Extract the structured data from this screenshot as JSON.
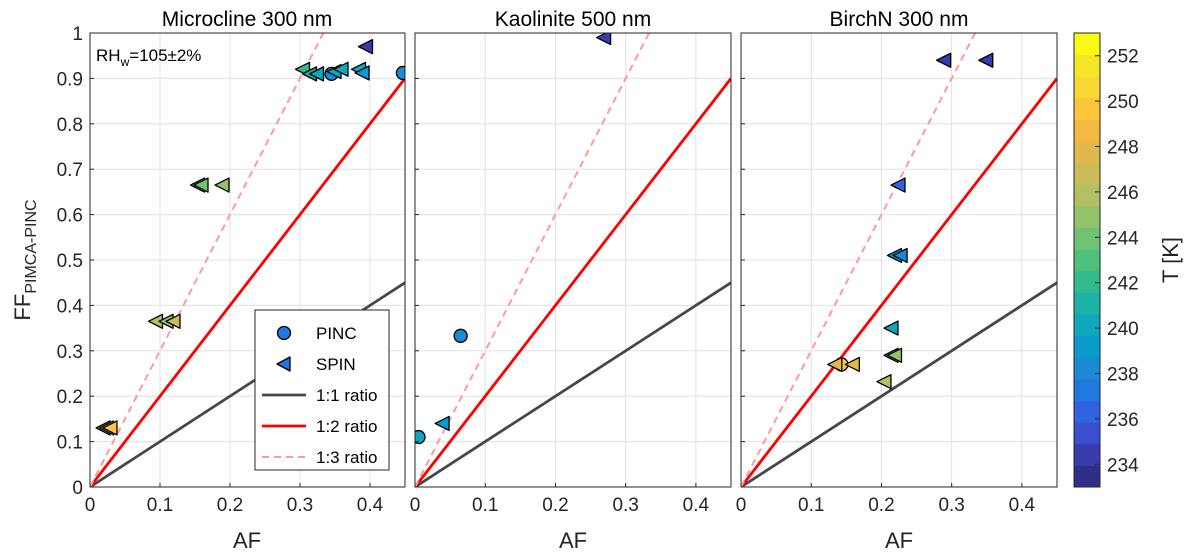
{
  "figure": {
    "ylabel_main": "FF",
    "ylabel_sub": "PIMCA-PINC",
    "xlabel": "AF",
    "annotation_main": "RH",
    "annotation_sub": "w",
    "annotation_rest": "=105±2%"
  },
  "legend": {
    "items": [
      {
        "label": "PINC",
        "kind": "circle"
      },
      {
        "label": "SPIN",
        "kind": "triangle"
      },
      {
        "label": "1:1 ratio",
        "kind": "line11"
      },
      {
        "label": "1:2 ratio",
        "kind": "line12"
      },
      {
        "label": "1:3 ratio",
        "kind": "line13"
      }
    ]
  },
  "colorbar": {
    "label": "T [K]",
    "range": [
      233,
      253
    ],
    "ticks": [
      234,
      236,
      238,
      240,
      242,
      244,
      246,
      248,
      250,
      252
    ],
    "colors": [
      "#2f2d87",
      "#383caa",
      "#3a4fd0",
      "#3163e0",
      "#2178dc",
      "#1a8bd2",
      "#0a9acb",
      "#0fa7bb",
      "#1cb2a6",
      "#33b990",
      "#4fbf7c",
      "#70c372",
      "#92c26a",
      "#b0c062",
      "#cabc58",
      "#e1b84b",
      "#f3b940",
      "#fbc63b",
      "#f8d834",
      "#f5e527",
      "#f9fa14"
    ]
  },
  "colors": {
    "line_1to1": "#474747",
    "line_1to2": "#ff0000",
    "line_1to3": "#ff9a9a",
    "grid": "#e0e0e0",
    "axis": "#262626"
  },
  "chart_data": [
    {
      "type": "scatter",
      "title": "Microcline 300 nm",
      "xlabel": "AF",
      "ylabel": "FF_PIMCA-PINC",
      "xlim": [
        0,
        0.45
      ],
      "ylim": [
        0,
        1
      ],
      "xticks": [
        "0",
        "0.1",
        "0.2",
        "0.3",
        "0.4"
      ],
      "yticks": [
        "0",
        "0.1",
        "0.2",
        "0.3",
        "0.4",
        "0.5",
        "0.6",
        "0.7",
        "0.8",
        "0.9",
        "1"
      ],
      "reference_lines": [
        {
          "name": "1:1 ratio",
          "slope": 1
        },
        {
          "name": "1:2 ratio",
          "slope": 2
        },
        {
          "name": "1:3 ratio",
          "slope": 3
        }
      ],
      "series": [
        {
          "name": "PINC",
          "marker": "circle",
          "points": [
            {
              "x": 0.345,
              "y": 0.91,
              "T": 238.5
            },
            {
              "x": 0.447,
              "y": 0.912,
              "T": 238
            }
          ]
        },
        {
          "name": "SPIN",
          "marker": "triangle",
          "points": [
            {
              "x": 0.02,
              "y": 0.13,
              "T": 246
            },
            {
              "x": 0.025,
              "y": 0.13,
              "T": 249
            },
            {
              "x": 0.03,
              "y": 0.13,
              "T": 250
            },
            {
              "x": 0.095,
              "y": 0.365,
              "T": 246
            },
            {
              "x": 0.11,
              "y": 0.365,
              "T": 245
            },
            {
              "x": 0.12,
              "y": 0.365,
              "T": 247
            },
            {
              "x": 0.155,
              "y": 0.665,
              "T": 244
            },
            {
              "x": 0.16,
              "y": 0.665,
              "T": 243.5
            },
            {
              "x": 0.19,
              "y": 0.665,
              "T": 244.5
            },
            {
              "x": 0.305,
              "y": 0.92,
              "T": 242
            },
            {
              "x": 0.315,
              "y": 0.91,
              "T": 241
            },
            {
              "x": 0.325,
              "y": 0.91,
              "T": 240.5
            },
            {
              "x": 0.35,
              "y": 0.915,
              "T": 240
            },
            {
              "x": 0.36,
              "y": 0.92,
              "T": 240.5
            },
            {
              "x": 0.385,
              "y": 0.92,
              "T": 240
            },
            {
              "x": 0.39,
              "y": 0.912,
              "T": 239.5
            },
            {
              "x": 0.395,
              "y": 0.97,
              "T": 234
            }
          ]
        }
      ]
    },
    {
      "type": "scatter",
      "title": "Kaolinite 500 nm",
      "xlabel": "AF",
      "xlim": [
        0,
        0.45
      ],
      "ylim": [
        0,
        1
      ],
      "xticks": [
        "0",
        "0.1",
        "0.2",
        "0.3",
        "0.4"
      ],
      "reference_lines": [
        {
          "name": "1:1 ratio",
          "slope": 1
        },
        {
          "name": "1:2 ratio",
          "slope": 2
        },
        {
          "name": "1:3 ratio",
          "slope": 3
        }
      ],
      "series": [
        {
          "name": "PINC",
          "marker": "circle",
          "points": [
            {
              "x": 0.005,
              "y": 0.11,
              "T": 240.5
            },
            {
              "x": 0.065,
              "y": 0.333,
              "T": 238
            }
          ]
        },
        {
          "name": "SPIN",
          "marker": "triangle",
          "points": [
            {
              "x": 0.04,
              "y": 0.14,
              "T": 239
            },
            {
              "x": 0.27,
              "y": 0.99,
              "T": 234
            }
          ]
        }
      ]
    },
    {
      "type": "scatter",
      "title": "BirchN 300 nm",
      "xlabel": "AF",
      "xlim": [
        0,
        0.45
      ],
      "ylim": [
        0,
        1
      ],
      "xticks": [
        "0",
        "0.1",
        "0.2",
        "0.3",
        "0.4"
      ],
      "reference_lines": [
        {
          "name": "1:1 ratio",
          "slope": 1
        },
        {
          "name": "1:2 ratio",
          "slope": 2
        },
        {
          "name": "1:3 ratio",
          "slope": 3
        }
      ],
      "series": [
        {
          "name": "PINC",
          "marker": "circle",
          "points": [
            {
              "x": 0.143,
              "y": 0.27,
              "T": 249.5
            }
          ]
        },
        {
          "name": "SPIN",
          "marker": "triangle",
          "points": [
            {
              "x": 0.135,
              "y": 0.27,
              "T": 248
            },
            {
              "x": 0.16,
              "y": 0.27,
              "T": 247.5
            },
            {
              "x": 0.205,
              "y": 0.232,
              "T": 246
            },
            {
              "x": 0.215,
              "y": 0.29,
              "T": 243
            },
            {
              "x": 0.22,
              "y": 0.29,
              "T": 244.5
            },
            {
              "x": 0.215,
              "y": 0.35,
              "T": 240.5
            },
            {
              "x": 0.22,
              "y": 0.51,
              "T": 239
            },
            {
              "x": 0.228,
              "y": 0.51,
              "T": 238
            },
            {
              "x": 0.225,
              "y": 0.665,
              "T": 236.5
            },
            {
              "x": 0.29,
              "y": 0.94,
              "T": 234
            },
            {
              "x": 0.35,
              "y": 0.94,
              "T": 234
            }
          ]
        }
      ]
    }
  ]
}
